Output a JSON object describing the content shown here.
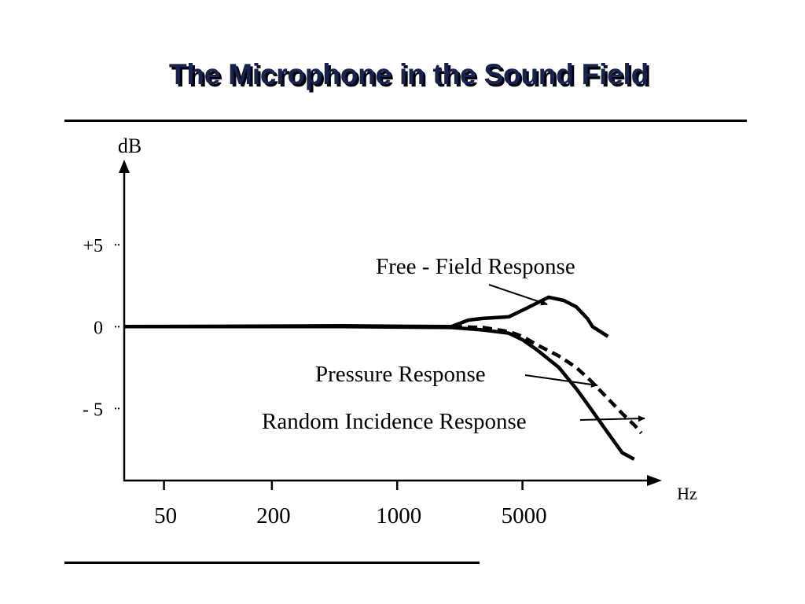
{
  "slide": {
    "title": "The Microphone in the Sound Field"
  },
  "chart_data": {
    "type": "line",
    "title": "The Microphone in the Sound Field",
    "xlabel": "Hz",
    "ylabel": "dB",
    "x_scale": "log",
    "x_ticks": [
      {
        "value": 50,
        "label": "50"
      },
      {
        "value": 200,
        "label": "200"
      },
      {
        "value": 1000,
        "label": "1000"
      },
      {
        "value": 5000,
        "label": "5000"
      }
    ],
    "y_ticks": [
      {
        "value": 5,
        "label": "+5"
      },
      {
        "value": 0,
        "label": "0"
      },
      {
        "value": -5,
        "label": "- 5"
      }
    ],
    "xlim": [
      30,
      30000
    ],
    "ylim": [
      -9.4,
      10.2
    ],
    "grid": false,
    "series": [
      {
        "name": "Free - Field Response",
        "style": "solid",
        "x": [
          30,
          500,
          2000,
          2500,
          3000,
          4200,
          5000,
          7000,
          8500,
          10000,
          11500,
          12300,
          15000
        ],
        "y": [
          0,
          0.05,
          0,
          0.4,
          0.5,
          0.6,
          1,
          1.8,
          1.6,
          1.2,
          0.5,
          0.0,
          -0.6
        ]
      },
      {
        "name": "Pressure Response",
        "style": "solid",
        "x": [
          30,
          500,
          2000,
          3000,
          4200,
          5000,
          6000,
          8000,
          10000,
          12000,
          15000,
          18000,
          21000
        ],
        "y": [
          0,
          0,
          -0.05,
          -0.2,
          -0.4,
          -0.8,
          -1.4,
          -2.5,
          -3.8,
          -5.0,
          -6.5,
          -7.7,
          -8.1
        ]
      },
      {
        "name": "Random Incidence Response",
        "style": "dashed",
        "x": [
          30,
          500,
          2000,
          3000,
          4200,
          5000,
          6000,
          8000,
          10000,
          12000,
          15000,
          18000,
          21000,
          23000
        ],
        "y": [
          0,
          0,
          0,
          -0.05,
          -0.3,
          -0.6,
          -1.1,
          -1.8,
          -2.5,
          -3.3,
          -4.4,
          -5.3,
          -6.0,
          -6.5
        ]
      }
    ],
    "annotations": [
      {
        "text": "Free - Field Response"
      },
      {
        "text": "Pressure Response"
      },
      {
        "text": "Random Incidence Response"
      }
    ]
  }
}
